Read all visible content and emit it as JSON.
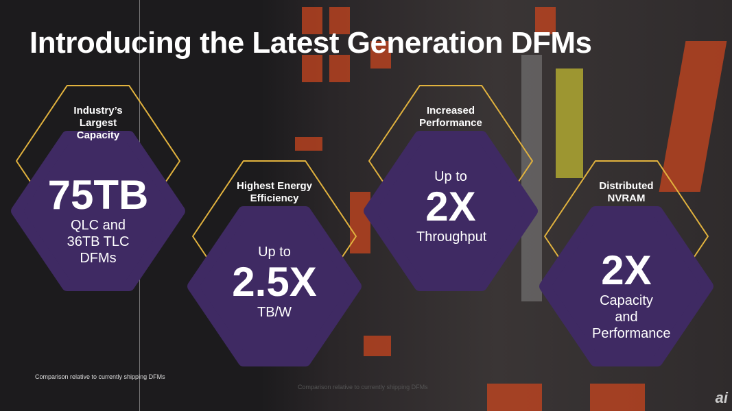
{
  "title": "Introducing the Latest Generation DFMs",
  "colors": {
    "purple": "#3f2a63",
    "gold": "#e2b33e",
    "bg": "#1c1b1d"
  },
  "cards": [
    {
      "label": "Industry’s Largest Capacity",
      "pre": "",
      "value": "75TB",
      "sub": "QLC and 36TB TLC DFMs"
    },
    {
      "label": "Highest Energy Efficiency",
      "pre": "Up to",
      "value": "2.5X",
      "sub": "TB/W"
    },
    {
      "label": "Increased Performance",
      "pre": "Up to",
      "value": "2X",
      "sub": "Throughput"
    },
    {
      "label": "Distributed NVRAM",
      "pre": "",
      "value": "2X",
      "sub": "Capacity and Performance"
    }
  ],
  "footnote": "Comparison relative to currently shipping DFMs",
  "footnote2": "Comparison relative to currently shipping DFMs",
  "watermark": "ai"
}
